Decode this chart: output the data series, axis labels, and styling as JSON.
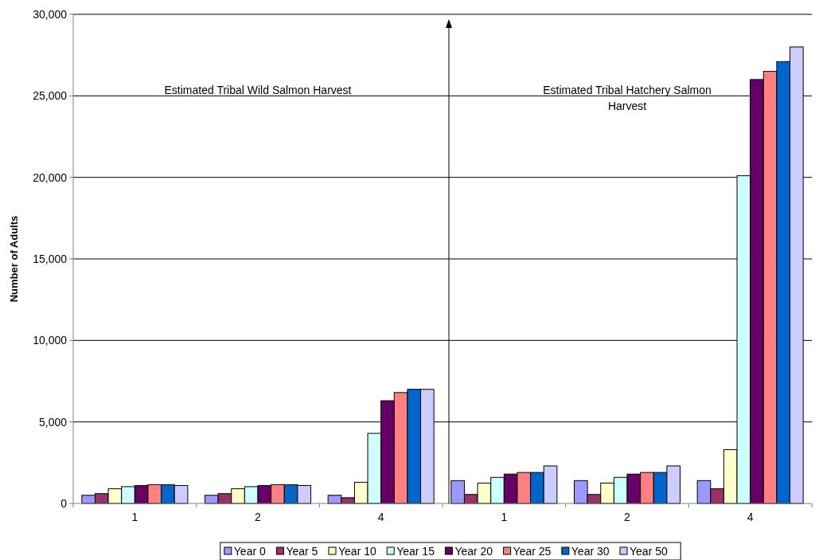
{
  "chart_data": {
    "type": "bar",
    "ylabel": "Number of Adults",
    "categories": [
      "1",
      "2",
      "4",
      "1",
      "2",
      "4"
    ],
    "series": [
      {
        "name": "Year 0",
        "color": "#9999ff",
        "values": [
          500,
          500,
          500,
          1400,
          1400,
          1400
        ]
      },
      {
        "name": "Year 5",
        "color": "#993366",
        "values": [
          600,
          600,
          350,
          550,
          550,
          900
        ]
      },
      {
        "name": "Year 10",
        "color": "#ffffcc",
        "values": [
          900,
          900,
          1300,
          1250,
          1250,
          3300
        ]
      },
      {
        "name": "Year 15",
        "color": "#ccffff",
        "values": [
          1030,
          1030,
          4300,
          1600,
          1600,
          20100
        ]
      },
      {
        "name": "Year 20",
        "color": "#660066",
        "values": [
          1100,
          1100,
          6300,
          1800,
          1800,
          26000
        ]
      },
      {
        "name": "Year 25",
        "color": "#ff8080",
        "values": [
          1150,
          1150,
          6800,
          1900,
          1900,
          26500
        ]
      },
      {
        "name": "Year 30",
        "color": "#0066cc",
        "values": [
          1150,
          1150,
          7000,
          1900,
          1900,
          27100
        ]
      },
      {
        "name": "Year 50",
        "color": "#ccccff",
        "values": [
          1100,
          1100,
          7000,
          2300,
          2300,
          28000
        ]
      }
    ],
    "ylim": [
      0,
      30000
    ],
    "yticks": [
      {
        "value": 0,
        "label": "0"
      },
      {
        "value": 5000,
        "label": "5,000"
      },
      {
        "value": 10000,
        "label": "10,000"
      },
      {
        "value": 15000,
        "label": "15,000"
      },
      {
        "value": 20000,
        "label": "20,000"
      },
      {
        "value": 25000,
        "label": "25,000"
      },
      {
        "value": 30000,
        "label": "30,000"
      }
    ],
    "grid": "y",
    "legend": "bottom",
    "annotations": [
      "Estimated Tribal Wild Salmon Harvest",
      "Estimated Tribal Hatchery Salmon Harvest"
    ]
  }
}
